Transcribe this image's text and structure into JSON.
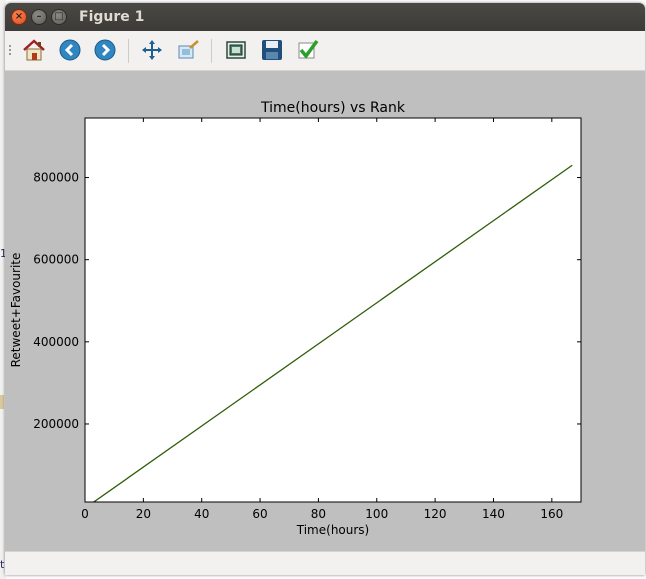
{
  "window": {
    "title": "Figure 1",
    "controls": [
      "close-icon",
      "minimize-icon",
      "maximize-icon"
    ]
  },
  "toolbar": {
    "items": [
      {
        "name": "home-icon",
        "tooltip": ""
      },
      {
        "name": "back-icon",
        "tooltip": ""
      },
      {
        "name": "forward-icon",
        "tooltip": ""
      },
      {
        "name": "pan-icon",
        "tooltip": ""
      },
      {
        "name": "zoom-icon",
        "tooltip": ""
      },
      {
        "name": "configure-subplots-icon",
        "tooltip": ""
      },
      {
        "name": "save-icon",
        "tooltip": ""
      },
      {
        "name": "edit-parameters-icon",
        "tooltip": ""
      }
    ]
  },
  "background_app": {
    "edge_char_1": "1",
    "edge_char_2": "t"
  },
  "chart_data": {
    "type": "line",
    "title": "Time(hours) vs Rank",
    "xlabel": "Time(hours)",
    "ylabel": "Retweet+Favourite",
    "xlim": [
      0,
      170
    ],
    "ylim": [
      10000,
      945000
    ],
    "xticks": [
      0,
      20,
      40,
      60,
      80,
      100,
      120,
      140,
      160
    ],
    "yticks": [
      200000,
      400000,
      600000,
      800000
    ],
    "grid": false,
    "series": [
      {
        "color": "#2e5d0a",
        "x": [
          1,
          167
        ],
        "y": [
          0,
          830000
        ]
      }
    ]
  },
  "colors": {
    "canvas_bg": "#bfbfbf",
    "axes_bg": "#ffffff",
    "line": "#2e5d0a",
    "titlebar": "#3c3b37",
    "toolbar": "#f2f1f0"
  }
}
